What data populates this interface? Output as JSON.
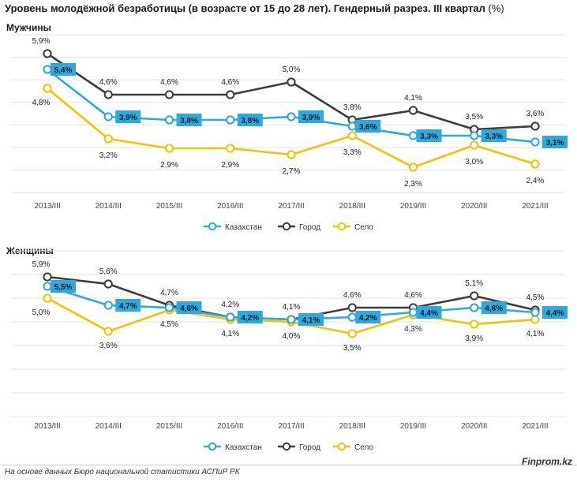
{
  "title": "Уровень молодёжной безработицы (в возрасте от 15 до 28 лет). Гендерный разрез. III квартал",
  "title_unit": "(%)",
  "source": "На основе данных Бюро национальной статистики АСПиР РК",
  "brand": "Finprom.kz",
  "colors": {
    "kazakhstan": "#29aae1",
    "city": "#3d3d3d",
    "village": "#f5c200",
    "grid": "#e3e3e3",
    "label_box": "#29aae1"
  },
  "chart_data": [
    {
      "type": "line",
      "title": "Мужчины",
      "categories": [
        "2013/III",
        "2014/III",
        "2015/III",
        "2016/III",
        "2017/III",
        "2018/III",
        "2019/III",
        "2020/III",
        "2021/III"
      ],
      "ylim": [
        1.5,
        6.5
      ],
      "grid": true,
      "legend": "bottom",
      "series": [
        {
          "name": "Казахстан",
          "key": "kazakhstan",
          "values": [
            5.4,
            3.9,
            3.8,
            3.8,
            3.9,
            3.6,
            3.3,
            3.3,
            3.1
          ],
          "labels": [
            "5,4%",
            "3,9%",
            "3,8%",
            "3,8%",
            "3,9%",
            "3,6%",
            "3,3%",
            "3,3%",
            "3,1%"
          ]
        },
        {
          "name": "Город",
          "key": "city",
          "values": [
            5.9,
            4.6,
            4.6,
            4.6,
            5.0,
            3.8,
            4.1,
            3.5,
            3.6
          ],
          "labels": [
            "5,9%",
            "4,6%",
            "4,6%",
            "4,6%",
            "5,0%",
            "3,8%",
            "4,1%",
            "3,5%",
            "3,6%"
          ]
        },
        {
          "name": "Село",
          "key": "village",
          "values": [
            4.8,
            3.2,
            2.9,
            2.9,
            2.7,
            3.3,
            2.3,
            3.0,
            2.4
          ],
          "labels": [
            "4,8%",
            "3,2%",
            "2,9%",
            "2,9%",
            "2,7%",
            "3,3%",
            "2,3%",
            "3,0%",
            "2,4%"
          ]
        }
      ]
    },
    {
      "type": "line",
      "title": "Женщины",
      "categories": [
        "2013/III",
        "2014/III",
        "2015/III",
        "2016/III",
        "2017/III",
        "2018/III",
        "2019/III",
        "2020/III",
        "2021/III"
      ],
      "ylim": [
        0,
        7
      ],
      "grid": true,
      "legend": "bottom",
      "series": [
        {
          "name": "Казахстан",
          "key": "kazakhstan",
          "values": [
            5.5,
            4.7,
            4.6,
            4.2,
            4.1,
            4.2,
            4.4,
            4.6,
            4.4
          ],
          "labels": [
            "5,5%",
            "4,7%",
            "4,6%",
            "4,2%",
            "4,1%",
            "4,2%",
            "4,4%",
            "4,6%",
            "4,4%"
          ]
        },
        {
          "name": "Город",
          "key": "city",
          "values": [
            5.9,
            5.6,
            4.7,
            4.2,
            4.1,
            4.6,
            4.6,
            5.1,
            4.5
          ],
          "labels": [
            "5,9%",
            "5,6%",
            "4,7%",
            "4,2%",
            "4,1%",
            "4,6%",
            "4,6%",
            "5,1%",
            "4,5%"
          ]
        },
        {
          "name": "Село",
          "key": "village",
          "values": [
            5.0,
            3.6,
            4.5,
            4.1,
            4.0,
            3.5,
            4.3,
            3.9,
            4.1
          ],
          "labels": [
            "5,0%",
            "3,6%",
            "4,5%",
            "4,1%",
            "4,0%",
            "3,5%",
            "4,3%",
            "3,9%",
            "4,1%"
          ]
        }
      ]
    }
  ]
}
